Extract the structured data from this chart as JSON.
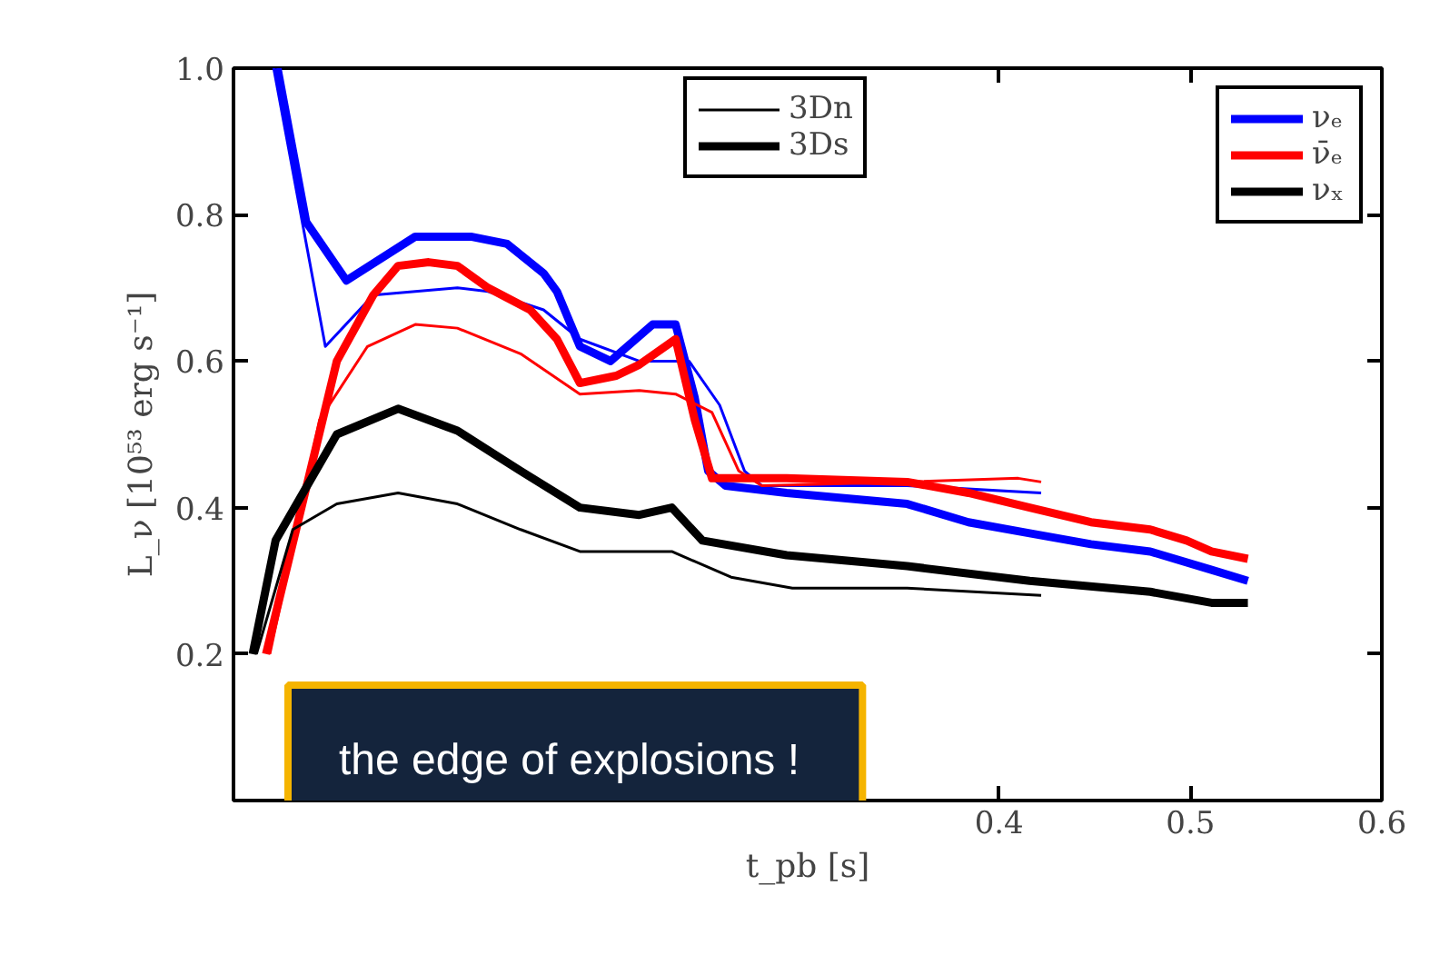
{
  "chart_data": {
    "type": "line",
    "xlabel": "t_pb [s]",
    "ylabel": "L_ν [10⁵³ erg s⁻¹]",
    "xlim": [
      0,
      0.6
    ],
    "ylim": [
      0,
      1.0
    ],
    "xticks": [
      0.4,
      0.5,
      0.6
    ],
    "yticks": [
      0.2,
      0.4,
      0.6,
      0.8,
      {
        "value": 1.0,
        "label": "1.0"
      }
    ],
    "grid": false,
    "annotations": [
      "3Dn",
      "3Ds",
      "νₑ",
      "ν̄ₑ",
      "νₓ",
      "the edge of  explosions !"
    ],
    "series": [
      {
        "color": "#0000ff",
        "x": [
          0.021,
          0.048,
          0.073,
          0.117,
          0.133,
          0.162,
          0.181,
          0.212,
          0.238,
          0.254,
          0.267,
          0.276,
          0.352,
          0.422
        ],
        "values": [
          1.0,
          0.62,
          0.69,
          0.7,
          0.695,
          0.67,
          0.63,
          0.6,
          0.6,
          0.54,
          0.45,
          0.43,
          0.43,
          0.42
        ]
      },
      {
        "color": "#0000ff",
        "x": [
          0.023,
          0.038,
          0.059,
          0.095,
          0.124,
          0.143,
          0.162,
          0.169,
          0.181,
          0.197,
          0.219,
          0.231,
          0.241,
          0.248,
          0.257,
          0.289,
          0.352,
          0.384,
          0.416,
          0.448,
          0.479,
          0.511,
          0.53
        ],
        "values": [
          1.0,
          0.79,
          0.71,
          0.77,
          0.77,
          0.76,
          0.72,
          0.695,
          0.62,
          0.6,
          0.65,
          0.65,
          0.55,
          0.45,
          0.43,
          0.42,
          0.405,
          0.38,
          0.365,
          0.35,
          0.34,
          0.315,
          0.3
        ]
      },
      {
        "color": "#ff0000",
        "x": [
          0.019,
          0.045,
          0.07,
          0.095,
          0.117,
          0.15,
          0.181,
          0.212,
          0.231,
          0.25,
          0.264,
          0.276,
          0.352,
          0.41,
          0.422
        ],
        "values": [
          0.2,
          0.52,
          0.62,
          0.65,
          0.645,
          0.61,
          0.555,
          0.56,
          0.555,
          0.53,
          0.45,
          0.43,
          0.435,
          0.44,
          0.435
        ]
      },
      {
        "color": "#ff0000",
        "x": [
          0.017,
          0.054,
          0.073,
          0.086,
          0.102,
          0.117,
          0.133,
          0.155,
          0.169,
          0.181,
          0.2,
          0.212,
          0.231,
          0.241,
          0.25,
          0.289,
          0.352,
          0.384,
          0.416,
          0.448,
          0.479,
          0.498,
          0.511,
          0.53
        ],
        "values": [
          0.2,
          0.6,
          0.69,
          0.73,
          0.735,
          0.73,
          0.7,
          0.67,
          0.63,
          0.57,
          0.58,
          0.595,
          0.63,
          0.52,
          0.44,
          0.44,
          0.435,
          0.42,
          0.4,
          0.38,
          0.37,
          0.355,
          0.34,
          0.33
        ]
      },
      {
        "color": "#000000",
        "x": [
          0.012,
          0.031,
          0.054,
          0.086,
          0.117,
          0.15,
          0.181,
          0.229,
          0.26,
          0.292,
          0.352,
          0.422
        ],
        "values": [
          0.2,
          0.37,
          0.405,
          0.42,
          0.405,
          0.37,
          0.34,
          0.34,
          0.305,
          0.29,
          0.29,
          0.28
        ]
      },
      {
        "color": "#000000",
        "x": [
          0.01,
          0.022,
          0.054,
          0.086,
          0.117,
          0.15,
          0.181,
          0.212,
          0.229,
          0.245,
          0.289,
          0.352,
          0.416,
          0.479,
          0.511,
          0.53
        ],
        "values": [
          0.2,
          0.355,
          0.5,
          0.535,
          0.505,
          0.45,
          0.4,
          0.39,
          0.4,
          0.355,
          0.335,
          0.32,
          0.3,
          0.285,
          0.27,
          0.27
        ]
      }
    ]
  }
}
